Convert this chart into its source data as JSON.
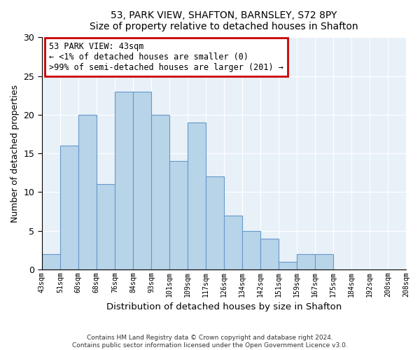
{
  "title": "53, PARK VIEW, SHAFTON, BARNSLEY, S72 8PY",
  "subtitle": "Size of property relative to detached houses in Shafton",
  "xlabel": "Distribution of detached houses by size in Shafton",
  "ylabel": "Number of detached properties",
  "bar_color": "#b8d4e8",
  "bar_edge_color": "#6699cc",
  "highlight_color": "#cc0000",
  "bin_labels": [
    "43sqm",
    "51sqm",
    "60sqm",
    "68sqm",
    "76sqm",
    "84sqm",
    "93sqm",
    "101sqm",
    "109sqm",
    "117sqm",
    "126sqm",
    "134sqm",
    "142sqm",
    "151sqm",
    "159sqm",
    "167sqm",
    "175sqm",
    "184sqm",
    "192sqm",
    "200sqm",
    "208sqm"
  ],
  "counts": [
    2,
    16,
    20,
    11,
    23,
    23,
    20,
    14,
    19,
    12,
    7,
    5,
    4,
    1,
    2,
    2,
    0,
    0,
    0,
    0
  ],
  "annotation_title": "53 PARK VIEW: 43sqm",
  "annotation_line1": "← <1% of detached houses are smaller (0)",
  "annotation_line2": ">99% of semi-detached houses are larger (201) →",
  "ylim": [
    0,
    30
  ],
  "yticks": [
    0,
    5,
    10,
    15,
    20,
    25,
    30
  ],
  "footer_line1": "Contains HM Land Registry data © Crown copyright and database right 2024.",
  "footer_line2": "Contains public sector information licensed under the Open Government Licence v3.0.",
  "plot_bg_color": "#e8f0f8",
  "grid_color": "#ffffff"
}
